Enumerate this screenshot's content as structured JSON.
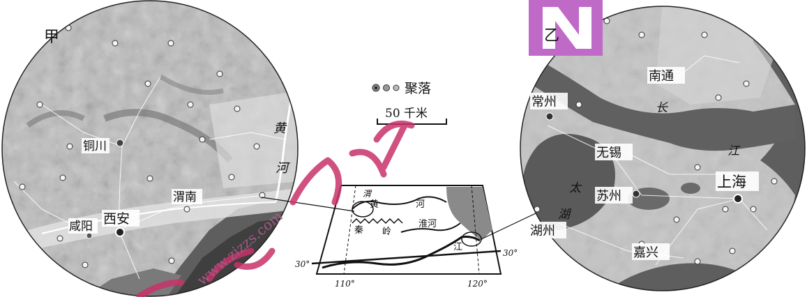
{
  "map_left": {
    "panel_label": "甲",
    "cities": {
      "tongchuan": "铜川",
      "weinan": "渭南",
      "xianyang": "咸阳",
      "xian": "西安"
    },
    "river": {
      "chars": [
        "黄",
        "河"
      ]
    }
  },
  "map_right": {
    "panel_label": "乙",
    "cities": {
      "nantong": "南通",
      "changzhou": "常州",
      "wuxi": "无锡",
      "suzhou": "苏州",
      "shanghai": "上海",
      "huzhou": "湖州",
      "jiaxing": "嘉兴"
    },
    "river": {
      "chars": [
        "长",
        "江"
      ]
    },
    "lake": {
      "chars": [
        "太",
        "湖"
      ]
    }
  },
  "legend": {
    "settlement_label": "聚落",
    "scale_label": "50 千米"
  },
  "locator": {
    "labels": {
      "wei": "渭",
      "huang_river": "河",
      "qin": "秦",
      "ling": "岭",
      "huai_river": "淮河",
      "jiang": "江"
    },
    "lat_left": "30°",
    "lat_right": "30°",
    "lon_110": "110°",
    "lon_120": "120°"
  },
  "watermark": {
    "text": "www.zizzs.com"
  },
  "colors": {
    "terrain": "#9a9a9a",
    "water": "#5f5f5f",
    "land_light": "#d4d4d4",
    "logo": "#c06ac8"
  }
}
